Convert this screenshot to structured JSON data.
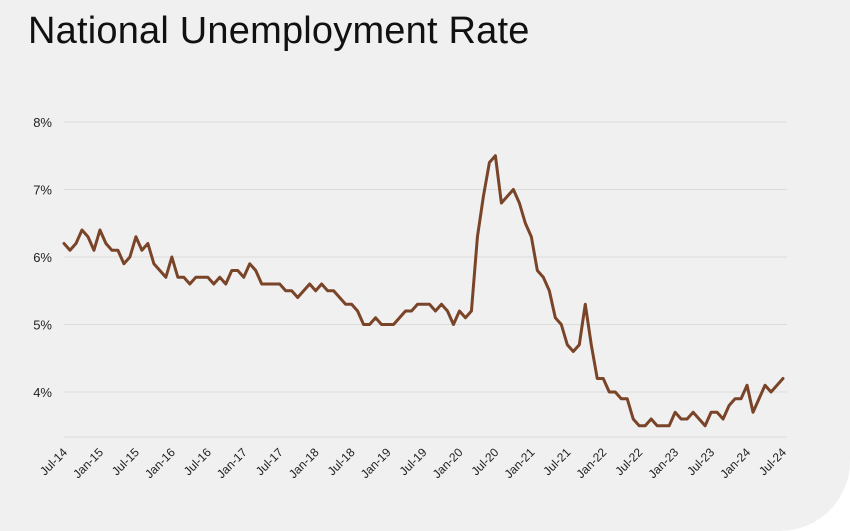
{
  "chart_data": {
    "type": "line",
    "title": "National Unemployment Rate",
    "xlabel": "",
    "ylabel": "",
    "ylim": [
      3.2,
      8.0
    ],
    "y_ticks": [
      {
        "value": 8,
        "label": "8%"
      },
      {
        "value": 7,
        "label": "7%"
      },
      {
        "value": 6,
        "label": "6%"
      },
      {
        "value": 5,
        "label": "5%"
      },
      {
        "value": 4,
        "label": "4%"
      }
    ],
    "x_ticks": [
      {
        "index": 0,
        "label": "Jul-14"
      },
      {
        "index": 6,
        "label": "Jan-15"
      },
      {
        "index": 12,
        "label": "Jul-15"
      },
      {
        "index": 18,
        "label": "Jan-16"
      },
      {
        "index": 24,
        "label": "Jul-16"
      },
      {
        "index": 30,
        "label": "Jan-17"
      },
      {
        "index": 36,
        "label": "Jul-17"
      },
      {
        "index": 42,
        "label": "Jan-18"
      },
      {
        "index": 48,
        "label": "Jul-18"
      },
      {
        "index": 54,
        "label": "Jan-19"
      },
      {
        "index": 60,
        "label": "Jul-19"
      },
      {
        "index": 66,
        "label": "Jan-20"
      },
      {
        "index": 72,
        "label": "Jul-20"
      },
      {
        "index": 78,
        "label": "Jan-21"
      },
      {
        "index": 84,
        "label": "Jul-21"
      },
      {
        "index": 90,
        "label": "Jan-22"
      },
      {
        "index": 96,
        "label": "Jul-22"
      },
      {
        "index": 102,
        "label": "Jan-23"
      },
      {
        "index": 108,
        "label": "Jul-23"
      },
      {
        "index": 114,
        "label": "Jan-24"
      },
      {
        "index": 120,
        "label": "Jul-24"
      }
    ],
    "grid": true,
    "legend": false,
    "colors": {
      "line": "#7a4429",
      "grid": "#dcdcdc",
      "background": "#f0f0f0"
    },
    "series": [
      {
        "values": [
          6.2,
          6.1,
          6.2,
          6.4,
          6.3,
          6.1,
          6.4,
          6.2,
          6.1,
          6.1,
          5.9,
          6.0,
          6.3,
          6.1,
          6.2,
          5.9,
          5.8,
          5.7,
          6.0,
          5.7,
          5.7,
          5.6,
          5.7,
          5.7,
          5.7,
          5.6,
          5.7,
          5.6,
          5.8,
          5.8,
          5.7,
          5.9,
          5.8,
          5.6,
          5.6,
          5.6,
          5.6,
          5.5,
          5.5,
          5.4,
          5.5,
          5.6,
          5.5,
          5.6,
          5.5,
          5.5,
          5.4,
          5.3,
          5.3,
          5.2,
          5.0,
          5.0,
          5.1,
          5.0,
          5.0,
          5.0,
          5.1,
          5.2,
          5.2,
          5.3,
          5.3,
          5.3,
          5.2,
          5.3,
          5.2,
          5.0,
          5.2,
          5.1,
          5.2,
          6.3,
          6.9,
          7.4,
          7.5,
          6.8,
          6.9,
          7.0,
          6.8,
          6.5,
          6.3,
          5.8,
          5.7,
          5.5,
          5.1,
          5.0,
          4.7,
          4.6,
          4.7,
          5.3,
          4.7,
          4.2,
          4.2,
          4.0,
          4.0,
          3.9,
          3.9,
          3.6,
          3.5,
          3.5,
          3.6,
          3.5,
          3.5,
          3.5,
          3.7,
          3.6,
          3.6,
          3.7,
          3.6,
          3.5,
          3.7,
          3.7,
          3.6,
          3.8,
          3.9,
          3.9,
          4.1,
          3.7,
          3.9,
          4.1,
          4.0,
          4.1,
          4.2
        ]
      }
    ]
  }
}
